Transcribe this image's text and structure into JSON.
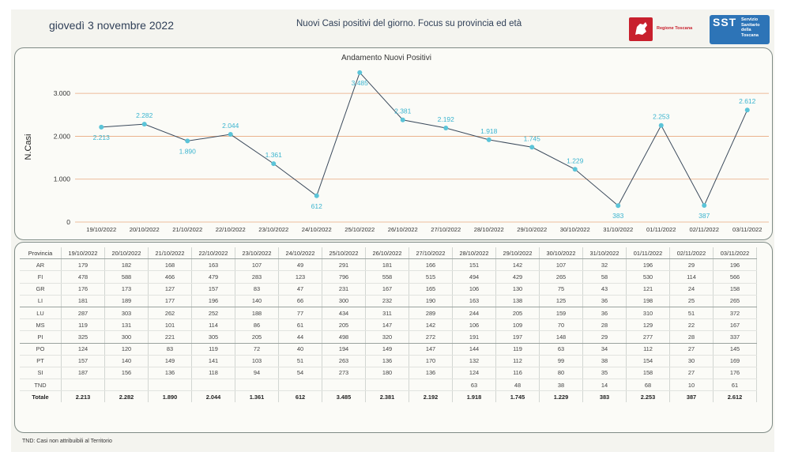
{
  "header": {
    "date": "giovedì 3 novembre 2022",
    "subtitle": "Nuovi Casi positivi del giorno. Focus su provincia ed età",
    "logo_toscana_text": "Regione Toscana",
    "logo_sst_mark": "SST",
    "logo_sst_text": [
      "Servizio",
      "Sanitario",
      "della",
      "Toscana"
    ]
  },
  "colors": {
    "line": "#3b4a5c",
    "point": "#5bc4d8",
    "label": "#3bb4cf",
    "grid": "#e8a77e",
    "axis_text": "#333333"
  },
  "chart_data": {
    "type": "line",
    "title": "Andamento Nuovi Positivi",
    "ylabel": "N.Casi",
    "xlabel": "",
    "ylim": [
      0,
      3500
    ],
    "yticks": [
      0,
      1000,
      2000,
      3000
    ],
    "ytick_labels": [
      "0",
      "1.000",
      "2.000",
      "3.000"
    ],
    "grid": true,
    "categories": [
      "19/10/2022",
      "20/10/2022",
      "21/10/2022",
      "22/10/2022",
      "23/10/2022",
      "24/10/2022",
      "25/10/2022",
      "26/10/2022",
      "27/10/2022",
      "28/10/2022",
      "29/10/2022",
      "30/10/2022",
      "31/10/2022",
      "01/11/2022",
      "02/11/2022",
      "03/11/2022"
    ],
    "values": [
      2213,
      2282,
      1890,
      2044,
      1361,
      612,
      3485,
      2381,
      2192,
      1918,
      1745,
      1229,
      383,
      2253,
      387,
      2612
    ],
    "value_labels": [
      "2.213",
      "2.282",
      "1.890",
      "2.044",
      "1.361",
      "612",
      "3.485",
      "2.381",
      "2.192",
      "1.918",
      "1.745",
      "1.229",
      "383",
      "2.253",
      "387",
      "2.612"
    ],
    "label_positions": [
      "below",
      "above",
      "below",
      "above",
      "above",
      "below",
      "below",
      "above",
      "above",
      "above",
      "above",
      "above",
      "below",
      "above",
      "below",
      "above"
    ]
  },
  "table": {
    "header_first": "Provincia",
    "columns": [
      "19/10/2022",
      "20/10/2022",
      "21/10/2022",
      "22/10/2022",
      "23/10/2022",
      "24/10/2022",
      "25/10/2022",
      "26/10/2022",
      "27/10/2022",
      "28/10/2022",
      "29/10/2022",
      "30/10/2022",
      "31/10/2022",
      "01/11/2022",
      "02/11/2022",
      "03/11/2022"
    ],
    "rows": [
      {
        "name": "AR",
        "values": [
          "179",
          "182",
          "168",
          "163",
          "107",
          "49",
          "291",
          "181",
          "166",
          "151",
          "142",
          "107",
          "32",
          "196",
          "29",
          "196"
        ]
      },
      {
        "name": "FI",
        "values": [
          "478",
          "588",
          "466",
          "479",
          "283",
          "123",
          "796",
          "558",
          "515",
          "494",
          "429",
          "265",
          "58",
          "530",
          "114",
          "566"
        ]
      },
      {
        "name": "GR",
        "values": [
          "176",
          "173",
          "127",
          "157",
          "83",
          "47",
          "231",
          "167",
          "165",
          "106",
          "130",
          "75",
          "43",
          "121",
          "24",
          "158"
        ]
      },
      {
        "name": "LI",
        "values": [
          "181",
          "189",
          "177",
          "196",
          "140",
          "66",
          "300",
          "232",
          "190",
          "163",
          "138",
          "125",
          "36",
          "198",
          "25",
          "265"
        ]
      },
      {
        "name": "LU",
        "values": [
          "287",
          "303",
          "262",
          "252",
          "188",
          "77",
          "434",
          "311",
          "289",
          "244",
          "205",
          "159",
          "36",
          "310",
          "51",
          "372"
        ]
      },
      {
        "name": "MS",
        "values": [
          "119",
          "131",
          "101",
          "114",
          "86",
          "61",
          "205",
          "147",
          "142",
          "106",
          "109",
          "70",
          "28",
          "129",
          "22",
          "167"
        ]
      },
      {
        "name": "PI",
        "values": [
          "325",
          "300",
          "221",
          "305",
          "205",
          "44",
          "498",
          "320",
          "272",
          "191",
          "197",
          "148",
          "29",
          "277",
          "28",
          "337"
        ]
      },
      {
        "name": "PO",
        "values": [
          "124",
          "120",
          "83",
          "119",
          "72",
          "40",
          "194",
          "149",
          "147",
          "144",
          "119",
          "63",
          "34",
          "112",
          "27",
          "145"
        ]
      },
      {
        "name": "PT",
        "values": [
          "157",
          "140",
          "149",
          "141",
          "103",
          "51",
          "263",
          "136",
          "170",
          "132",
          "112",
          "99",
          "38",
          "154",
          "30",
          "169"
        ]
      },
      {
        "name": "SI",
        "values": [
          "187",
          "156",
          "136",
          "118",
          "94",
          "54",
          "273",
          "180",
          "136",
          "124",
          "116",
          "80",
          "35",
          "158",
          "27",
          "176"
        ]
      },
      {
        "name": "TND",
        "values": [
          "",
          "",
          "",
          "",
          "",
          "",
          "",
          "",
          "",
          "63",
          "48",
          "38",
          "14",
          "68",
          "10",
          "61"
        ]
      }
    ],
    "total": {
      "name": "Totale",
      "values": [
        "2.213",
        "2.282",
        "1.890",
        "2.044",
        "1.361",
        "612",
        "3.485",
        "2.381",
        "2.192",
        "1.918",
        "1.745",
        "1.229",
        "383",
        "2.253",
        "387",
        "2.612"
      ]
    }
  },
  "footnote": "TND:  Casi non attribuibili al Territorio"
}
